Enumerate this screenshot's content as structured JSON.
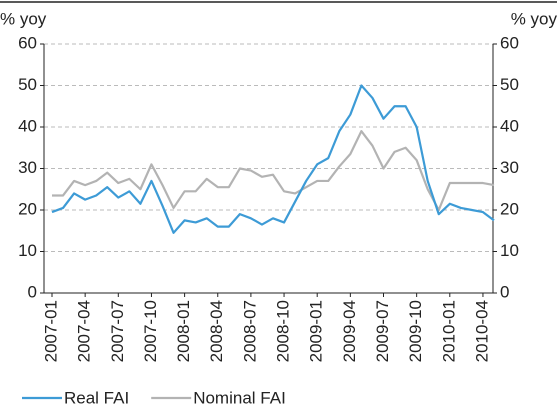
{
  "chart_data": {
    "type": "line",
    "y_label": "% yoy",
    "y2_label": "% yoy",
    "categories": [
      "2007-01",
      null,
      null,
      "2007-04",
      null,
      null,
      "2007-07",
      null,
      null,
      "2007-10",
      null,
      null,
      "2008-01",
      null,
      null,
      "2008-04",
      null,
      null,
      "2008-07",
      null,
      null,
      "2008-10",
      null,
      null,
      "2009-01",
      null,
      null,
      "2009-04",
      null,
      null,
      "2009-07",
      null,
      null,
      "2009-10",
      null,
      null,
      "2010-01",
      null,
      null,
      "2010-04",
      null
    ],
    "series": [
      {
        "name": "Real FAI",
        "color": "#3d9bd6",
        "values": [
          19.5,
          20.5,
          24,
          22.5,
          23.5,
          25.5,
          23,
          24.5,
          21.5,
          27,
          21,
          14.5,
          17.5,
          17,
          18,
          16,
          16,
          19,
          18,
          16.5,
          18,
          17,
          22,
          27,
          31,
          32.5,
          39,
          43,
          50,
          47,
          42,
          45,
          45,
          40,
          27,
          19,
          21.5,
          20.5,
          20,
          19.5,
          17.5
        ]
      },
      {
        "name": "Nominal FAI",
        "color": "#b3b3b3",
        "values": [
          23.5,
          23.5,
          27,
          26,
          27,
          29,
          26.5,
          27.5,
          25,
          31,
          26,
          20.5,
          24.5,
          24.5,
          27.5,
          25.5,
          25.5,
          30,
          29.5,
          28,
          28.5,
          24.5,
          24,
          25.5,
          27,
          27,
          30.5,
          33.5,
          39,
          35.5,
          30,
          34,
          35,
          32,
          25,
          20,
          26.5,
          26.5,
          26.5,
          26.5,
          26
        ]
      }
    ],
    "ylim": [
      0,
      60
    ],
    "yticks": [
      0,
      10,
      20,
      30,
      40,
      50,
      60
    ],
    "y2lim": [
      0,
      60
    ],
    "y2ticks": [
      0,
      10,
      20,
      30,
      40,
      50,
      60
    ],
    "grid": true
  }
}
